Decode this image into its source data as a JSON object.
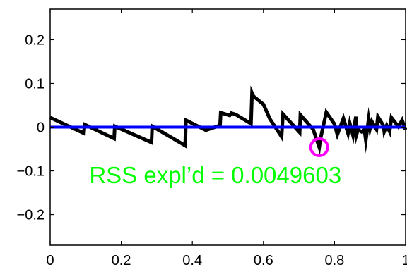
{
  "chart_data": {
    "type": "line",
    "xlim": [
      0,
      1
    ],
    "ylim": [
      -0.27,
      0.27
    ],
    "x_ticks": [
      0,
      0.2,
      0.4,
      0.6,
      0.8,
      1
    ],
    "x_tick_labels": [
      "0",
      "0.2",
      "0.4",
      "0.6",
      "0.8",
      "1"
    ],
    "y_ticks": [
      0.2,
      0.1,
      0,
      -0.1,
      -0.2
    ],
    "y_tick_labels": [
      "0.2",
      "0.1",
      "0",
      "−0.1",
      "−0.2"
    ],
    "grid": false,
    "series": [
      {
        "color": "#000000",
        "points": [
          [
            0.0,
            0.022
          ],
          [
            0.095,
            -0.014
          ],
          [
            0.097,
            0.006
          ],
          [
            0.18,
            -0.026
          ],
          [
            0.182,
            0.002
          ],
          [
            0.285,
            -0.035
          ],
          [
            0.287,
            0.002
          ],
          [
            0.38,
            -0.042
          ],
          [
            0.382,
            0.016
          ],
          [
            0.438,
            -0.007
          ],
          [
            0.478,
            0.004
          ],
          [
            0.48,
            0.033
          ],
          [
            0.505,
            0.027
          ],
          [
            0.51,
            0.032
          ],
          [
            0.522,
            0.029
          ],
          [
            0.565,
            0.008
          ],
          [
            0.568,
            0.078
          ],
          [
            0.572,
            0.071
          ],
          [
            0.6,
            0.052
          ],
          [
            0.618,
            0.019
          ],
          [
            0.651,
            -0.022
          ],
          [
            0.655,
            0.03
          ],
          [
            0.702,
            -0.012
          ],
          [
            0.704,
            0.028
          ],
          [
            0.74,
            -0.005
          ],
          [
            0.757,
            -0.046
          ],
          [
            0.76,
            -0.028
          ],
          [
            0.777,
            0.034
          ],
          [
            0.8,
            0.007
          ],
          [
            0.808,
            -0.017
          ],
          [
            0.825,
            0.02
          ],
          [
            0.838,
            -0.014
          ],
          [
            0.843,
            0.009
          ],
          [
            0.852,
            -0.019
          ],
          [
            0.86,
            0.024
          ],
          [
            0.862,
            -0.017
          ],
          [
            0.866,
            -0.006
          ],
          [
            0.877,
            -0.011
          ],
          [
            0.884,
            -0.006
          ],
          [
            0.888,
            -0.03
          ],
          [
            0.896,
            0.018
          ],
          [
            0.9,
            -0.003
          ],
          [
            0.905,
            0.013
          ],
          [
            0.918,
            -0.005
          ],
          [
            0.922,
            0.024
          ],
          [
            0.938,
            0.003
          ],
          [
            0.94,
            -0.01
          ],
          [
            0.947,
            0.004
          ],
          [
            0.955,
            -0.01
          ],
          [
            0.96,
            0.022
          ],
          [
            0.98,
            0.001
          ],
          [
            0.99,
            0.016
          ],
          [
            1.0,
            -0.006
          ]
        ]
      },
      {
        "color": "#0000ff",
        "points": [
          [
            0,
            0
          ],
          [
            1,
            0
          ]
        ]
      }
    ],
    "marker": {
      "type": "circle",
      "color": "#ff00ff",
      "x": 0.757,
      "y": -0.046
    },
    "annotation": {
      "text": "RSS expl’d = 0.0049603",
      "color": "#00ff00",
      "x": 0.11,
      "y": -0.128
    }
  }
}
